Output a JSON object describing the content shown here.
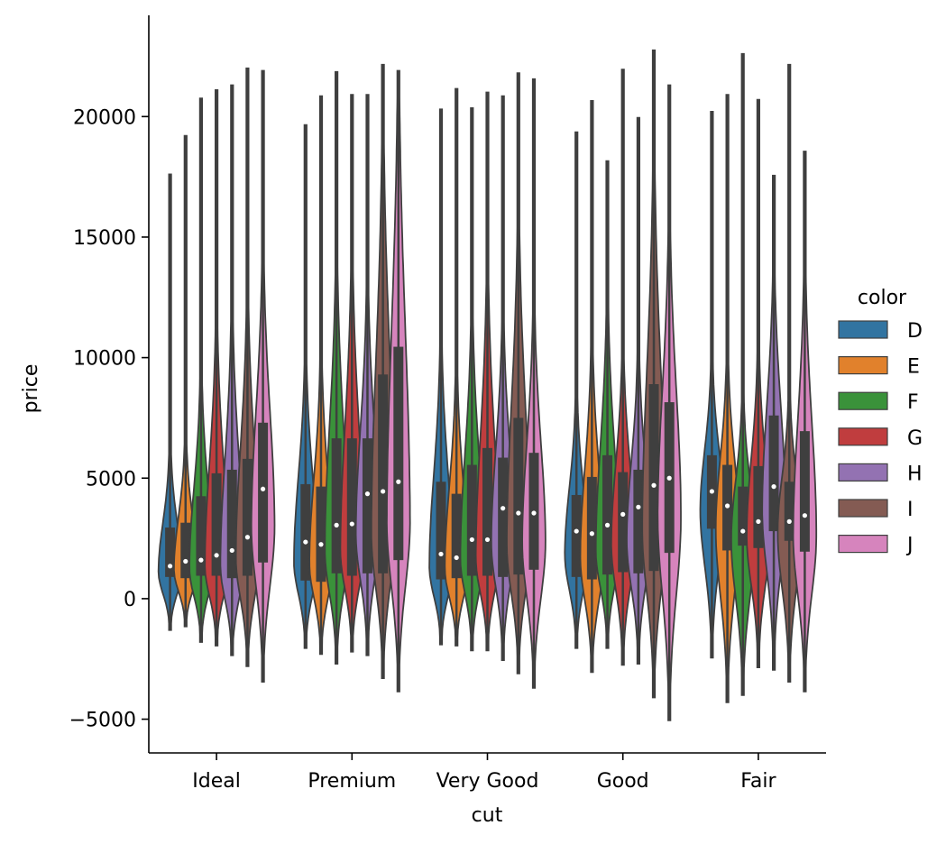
{
  "chart_data": {
    "type": "violin",
    "title": "",
    "xlabel": "cut",
    "ylabel": "price",
    "ylim": [
      -6400,
      24200
    ],
    "yticks": [
      -5000,
      0,
      5000,
      10000,
      15000,
      20000
    ],
    "ytick_labels": [
      "−5000",
      "0",
      "5000",
      "10000",
      "15000",
      "20000"
    ],
    "categories": [
      "Ideal",
      "Premium",
      "Very Good",
      "Good",
      "Fair"
    ],
    "legend": {
      "title": "color",
      "placement": "right"
    },
    "series": [
      {
        "name": "D",
        "color": "#3274a1"
      },
      {
        "name": "E",
        "color": "#e1812c"
      },
      {
        "name": "F",
        "color": "#3a923a"
      },
      {
        "name": "G",
        "color": "#c03d3e"
      },
      {
        "name": "H",
        "color": "#9372b2"
      },
      {
        "name": "I",
        "color": "#845b53"
      },
      {
        "name": "J",
        "color": "#d684bd"
      }
    ],
    "median_price": [
      [
        1350,
        1550,
        1600,
        1800,
        2000,
        2550,
        4550
      ],
      [
        2350,
        2250,
        3050,
        3100,
        4350,
        4450,
        4850
      ],
      [
        1850,
        1700,
        2450,
        2450,
        3750,
        3550,
        3550
      ],
      [
        2800,
        2700,
        3050,
        3500,
        3800,
        4700,
        5000
      ],
      [
        4450,
        3850,
        2800,
        3200,
        4650,
        3200,
        3450
      ]
    ],
    "q1_price": [
      [
        900,
        850,
        950,
        950,
        850,
        950,
        1500
      ],
      [
        750,
        700,
        1050,
        950,
        1050,
        1050,
        1600
      ],
      [
        800,
        850,
        950,
        950,
        900,
        1000,
        1200
      ],
      [
        900,
        800,
        1000,
        1100,
        1050,
        1150,
        1900
      ],
      [
        2900,
        2000,
        2200,
        2100,
        2800,
        2400,
        1950
      ]
    ],
    "q3_price": [
      [
        2950,
        3150,
        4250,
        5200,
        5350,
        5800,
        7300
      ],
      [
        4750,
        4650,
        6650,
        6650,
        6650,
        9300,
        10450
      ],
      [
        4850,
        4350,
        5550,
        6250,
        5850,
        7500,
        6050
      ],
      [
        4300,
        5050,
        5950,
        5250,
        5350,
        8900,
        8150
      ],
      [
        5950,
        5550,
        4650,
        5500,
        7600,
        4850,
        6950
      ]
    ],
    "price_min": [
      [
        -1300,
        -1150,
        -1800,
        -1950,
        -2350,
        -2800,
        -3450
      ],
      [
        -2050,
        -2300,
        -2700,
        -2200,
        -2350,
        -3300,
        -3850
      ],
      [
        -1900,
        -1950,
        -2150,
        -2150,
        -2550,
        -3100,
        -3700
      ],
      [
        -2050,
        -3050,
        -2050,
        -2750,
        -2700,
        -4100,
        -5050
      ],
      [
        -2450,
        -4300,
        -4000,
        -2850,
        -2950,
        -3450,
        -3850
      ]
    ],
    "price_max": [
      [
        17600,
        19200,
        20750,
        21100,
        21300,
        22000,
        21900
      ],
      [
        19650,
        20850,
        21850,
        20900,
        20900,
        22150,
        21900
      ],
      [
        20300,
        21150,
        20350,
        21000,
        20850,
        21800,
        21550
      ],
      [
        19350,
        20650,
        18150,
        21950,
        19950,
        22750,
        21300
      ],
      [
        20200,
        20900,
        22600,
        20700,
        17550,
        22150,
        18550
      ]
    ]
  }
}
